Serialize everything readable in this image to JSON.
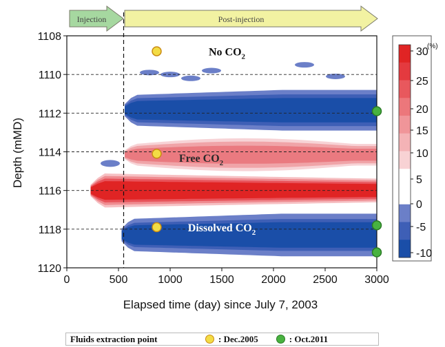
{
  "chart_data": {
    "type": "heatmap",
    "xlabel": "Elapsed time (day) since July 7, 2003",
    "ylabel": "Depth (mMD)",
    "xlim": [
      0,
      3000
    ],
    "ylim": [
      1108,
      1120
    ],
    "y_inverted": true,
    "x_ticks": [
      "0",
      "500",
      "1000",
      "1500",
      "2000",
      "2500",
      "3000"
    ],
    "y_ticks": [
      "1108",
      "1110",
      "1112",
      "1114",
      "1116",
      "1118",
      "1120"
    ],
    "grid_depths": [
      1110,
      1112,
      1114,
      1116,
      1118
    ],
    "injection_end_day": 550,
    "phases": [
      {
        "label": "Injection",
        "x_start": 0,
        "x_end": 550,
        "color": "#a6d8a0"
      },
      {
        "label": "Post-injection",
        "x_start": 550,
        "x_end": 3000,
        "color": "#f2f2a2"
      }
    ],
    "colorbar": {
      "unit": "(%)",
      "ticks": [
        "30",
        "25",
        "20",
        "15",
        "10",
        "5",
        "0",
        "-5",
        "-10"
      ],
      "range": [
        -10,
        30
      ]
    },
    "annotations": [
      {
        "main": "No CO",
        "sub": "2",
        "x": 1550,
        "y": 1108.8,
        "color": "#111111"
      },
      {
        "main": "Free CO",
        "sub": "2",
        "x": 1300,
        "y": 1114.3,
        "color": "#2a2a2a"
      },
      {
        "main": "Dissolved CO",
        "sub": "2",
        "x": 1500,
        "y": 1117.9,
        "color": "#ffffff"
      }
    ],
    "regions": [
      {
        "name": "dissolved-upper",
        "t0": 560,
        "t1": 3000,
        "d_top": 1110.8,
        "d_bot": 1112.9,
        "peak": -10,
        "shape": "growing"
      },
      {
        "name": "free-co2",
        "t0": 560,
        "t1": 3000,
        "d_top": 1113.3,
        "d_bot": 1115.0,
        "peak": 12,
        "shape": "bulge"
      },
      {
        "name": "free-co2-strong",
        "t0": 230,
        "t1": 3000,
        "d_top": 1115.1,
        "d_bot": 1116.9,
        "peak": 30,
        "shape": "decaying"
      },
      {
        "name": "dissolved-lower",
        "t0": 530,
        "t1": 3000,
        "d_top": 1117.2,
        "d_bot": 1119.4,
        "peak": -10,
        "shape": "growing"
      }
    ],
    "sampling_points": {
      "dec2005": [
        {
          "day": 870,
          "depth": 1108.8
        },
        {
          "day": 870,
          "depth": 1114.1
        },
        {
          "day": 870,
          "depth": 1117.9
        }
      ],
      "oct2011": [
        {
          "day": 3000,
          "depth": 1111.9
        },
        {
          "day": 3000,
          "depth": 1117.8
        },
        {
          "day": 3000,
          "depth": 1119.2
        }
      ]
    }
  },
  "legend": {
    "title": "Fluids extraction point",
    "dec_label": ": Dec.2005",
    "oct_label": ": Oct.2011",
    "dec_color": "#f3dc45",
    "oct_color": "#48b240"
  },
  "colors": {
    "blue_dark": "#1a4ea8",
    "blue_light": "#6b7fc8",
    "red_dark": "#e02424",
    "pink_light": "#f7d3d6"
  }
}
